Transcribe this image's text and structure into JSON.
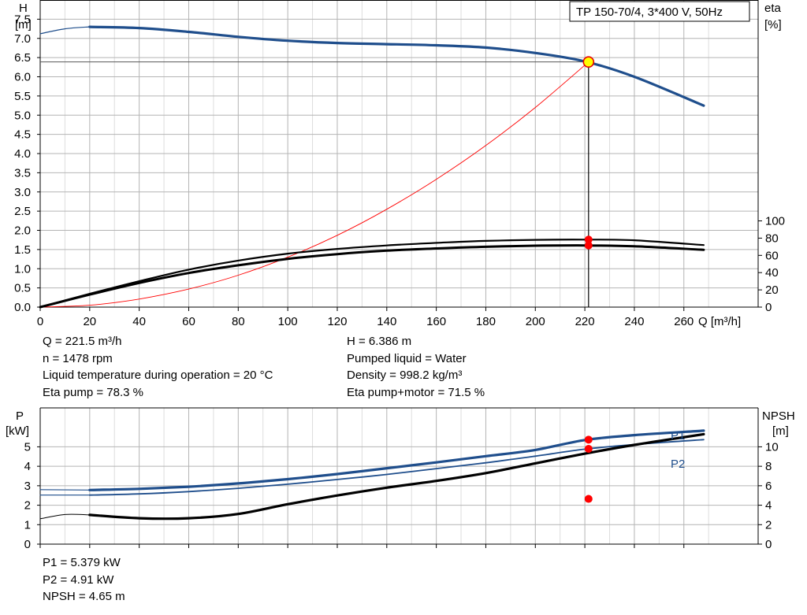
{
  "chart_data": [
    {
      "type": "line",
      "title": "TP 150-70/4, 3*400 V, 50Hz",
      "xlabel": "Q [m³/h]",
      "ylabel_left": [
        "H",
        "[m]"
      ],
      "ylabel_right": [
        "eta",
        "[%]"
      ],
      "xlim": [
        0,
        290
      ],
      "ylim_left": [
        0,
        8.0
      ],
      "ylim_right": [
        0,
        100
      ],
      "x_ticks": [
        0,
        20,
        40,
        60,
        80,
        100,
        120,
        140,
        160,
        180,
        200,
        220,
        240,
        260
      ],
      "y_ticks_left": [
        "0.0",
        "0.5",
        "1.0",
        "1.5",
        "2.0",
        "2.5",
        "3.0",
        "3.5",
        "4.0",
        "4.5",
        "5.0",
        "5.5",
        "6.0",
        "6.5",
        "7.0",
        "7.5"
      ],
      "y_ticks_right": [
        0,
        20,
        40,
        60,
        80,
        100
      ],
      "grid": true,
      "duty_point": {
        "x": 221.5,
        "H": 6.386,
        "eta_pump": 78.3,
        "eta_total": 71.5
      },
      "series": [
        {
          "role": "H",
          "color": "#1f4e8c",
          "points": [
            [
              20,
              7.3
            ],
            [
              40,
              7.27
            ],
            [
              60,
              7.17
            ],
            [
              80,
              7.04
            ],
            [
              100,
              6.94
            ],
            [
              120,
              6.88
            ],
            [
              140,
              6.85
            ],
            [
              160,
              6.82
            ],
            [
              180,
              6.76
            ],
            [
              200,
              6.62
            ],
            [
              220,
              6.4
            ],
            [
              240,
              6.0
            ],
            [
              268,
              5.25
            ]
          ]
        },
        {
          "role": "H-extension",
          "color": "#1f4e8c",
          "points": [
            [
              0,
              7.12
            ],
            [
              10,
              7.25
            ],
            [
              20,
              7.3
            ]
          ]
        },
        {
          "role": "eta-pump",
          "color": "#000000",
          "points": [
            [
              0,
              0
            ],
            [
              20,
              15.5
            ],
            [
              40,
              30
            ],
            [
              60,
              43.5
            ],
            [
              80,
              54
            ],
            [
              100,
              62
            ],
            [
              120,
              67.5
            ],
            [
              140,
              71.5
            ],
            [
              160,
              74.5
            ],
            [
              180,
              76.8
            ],
            [
              200,
              78
            ],
            [
              220,
              78.3
            ],
            [
              240,
              77.5
            ],
            [
              268,
              72
            ]
          ]
        },
        {
          "role": "eta-total",
          "color": "#000000",
          "points": [
            [
              0,
              0
            ],
            [
              20,
              14.5
            ],
            [
              40,
              28
            ],
            [
              60,
              39.5
            ],
            [
              80,
              48.5
            ],
            [
              100,
              56
            ],
            [
              120,
              61.5
            ],
            [
              140,
              65.5
            ],
            [
              160,
              68
            ],
            [
              180,
              70
            ],
            [
              200,
              71.2
            ],
            [
              220,
              71.5
            ],
            [
              240,
              70.5
            ],
            [
              268,
              66.5
            ]
          ]
        },
        {
          "role": "system-curve",
          "color": "#ff0000",
          "points": [
            [
              0,
              0
            ],
            [
              20,
              0.05
            ],
            [
              40,
              0.21
            ],
            [
              60,
              0.47
            ],
            [
              80,
              0.83
            ],
            [
              100,
              1.3
            ],
            [
              120,
              1.87
            ],
            [
              140,
              2.55
            ],
            [
              160,
              3.33
            ],
            [
              180,
              4.21
            ],
            [
              200,
              5.2
            ],
            [
              221.5,
              6.386
            ]
          ]
        }
      ]
    },
    {
      "type": "line",
      "xlim": [
        0,
        290
      ],
      "ylabel_left": [
        "P",
        "[kW]"
      ],
      "ylabel_right": [
        "NPSH",
        "[m]"
      ],
      "ylim_left": [
        0,
        7
      ],
      "ylim_right": [
        0,
        14
      ],
      "y_ticks_left": [
        0,
        1,
        2,
        3,
        4,
        5
      ],
      "y_ticks_right": [
        0,
        2,
        4,
        6,
        8,
        10
      ],
      "grid": true,
      "duty_point": {
        "x": 221.5,
        "P1": 5.379,
        "P2": 4.91,
        "NPSH": 4.65
      },
      "series": [
        {
          "name": "P1",
          "color": "#1f4e8c",
          "points": [
            [
              20,
              2.78
            ],
            [
              40,
              2.84
            ],
            [
              60,
              2.95
            ],
            [
              80,
              3.12
            ],
            [
              100,
              3.34
            ],
            [
              120,
              3.6
            ],
            [
              140,
              3.9
            ],
            [
              160,
              4.2
            ],
            [
              180,
              4.52
            ],
            [
              200,
              4.84
            ],
            [
              220,
              5.35
            ],
            [
              240,
              5.6
            ],
            [
              268,
              5.83
            ]
          ]
        },
        {
          "name": "P2",
          "color": "#1f4e8c",
          "points": [
            [
              20,
              2.52
            ],
            [
              40,
              2.58
            ],
            [
              60,
              2.7
            ],
            [
              80,
              2.87
            ],
            [
              100,
              3.08
            ],
            [
              120,
              3.32
            ],
            [
              140,
              3.58
            ],
            [
              160,
              3.88
            ],
            [
              180,
              4.18
            ],
            [
              200,
              4.52
            ],
            [
              220,
              4.88
            ],
            [
              240,
              5.12
            ],
            [
              268,
              5.37
            ]
          ]
        },
        {
          "role": "P-extension",
          "color": "#1f4e8c",
          "points": [
            [
              0,
              2.8
            ],
            [
              20,
              2.78
            ]
          ]
        },
        {
          "role": "P2-extension",
          "color": "#1f4e8c",
          "points": [
            [
              0,
              2.52
            ],
            [
              20,
              2.52
            ]
          ]
        },
        {
          "role": "NPSH",
          "color": "#000000",
          "points": [
            [
              20,
              1.5
            ],
            [
              40,
              1.33
            ],
            [
              60,
              1.33
            ],
            [
              80,
              1.55
            ],
            [
              100,
              2.05
            ],
            [
              120,
              2.5
            ],
            [
              140,
              2.9
            ],
            [
              160,
              3.25
            ],
            [
              180,
              3.65
            ],
            [
              200,
              4.15
            ],
            [
              220,
              4.65
            ],
            [
              240,
              5.1
            ],
            [
              268,
              5.65
            ]
          ]
        },
        {
          "role": "NPSH-extension",
          "color": "#000000",
          "points": [
            [
              0,
              1.3
            ],
            [
              10,
              1.52
            ],
            [
              20,
              1.5
            ]
          ]
        }
      ]
    }
  ],
  "info_top": {
    "left": [
      "Q = 221.5 m³/h",
      "n = 1478 rpm",
      "Liquid temperature during operation = 20 °C",
      "Eta pump = 78.3 %"
    ],
    "right": [
      "H = 6.386 m",
      "Pumped liquid = Water",
      "Density = 998.2 kg/m³",
      "Eta pump+motor = 71.5 %"
    ]
  },
  "info_bottom": [
    "P1 = 5.379 kW",
    "P2 = 4.91 kW",
    "NPSH = 4.65 m"
  ]
}
